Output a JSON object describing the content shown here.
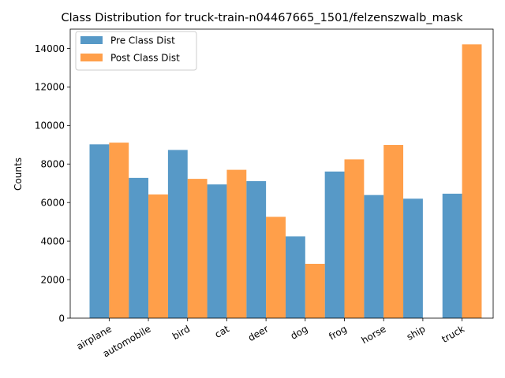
{
  "chart_data": {
    "type": "bar",
    "title": "Class Distribution for truck-train-n04467665_1501/felzenszwalb_mask",
    "xlabel": "",
    "ylabel": "Counts",
    "categories": [
      "airplane",
      "automobile",
      "bird",
      "cat",
      "deer",
      "dog",
      "frog",
      "horse",
      "ship",
      "truck"
    ],
    "series": [
      {
        "name": "Pre Class Dist",
        "color": "#1f77b4",
        "values": [
          9020,
          7280,
          8730,
          6940,
          7110,
          4240,
          7610,
          6390,
          6200,
          6460
        ]
      },
      {
        "name": "Post Class Dist",
        "color": "#ff7f0e",
        "values": [
          9110,
          6420,
          7230,
          7700,
          5260,
          2820,
          8240,
          8990,
          0,
          14210
        ]
      }
    ],
    "ylim": [
      0,
      15000
    ],
    "yticks": [
      0,
      2000,
      4000,
      6000,
      8000,
      10000,
      12000,
      14000
    ],
    "grid": false,
    "legend_position": "top-left",
    "bar_alpha": 0.75
  }
}
